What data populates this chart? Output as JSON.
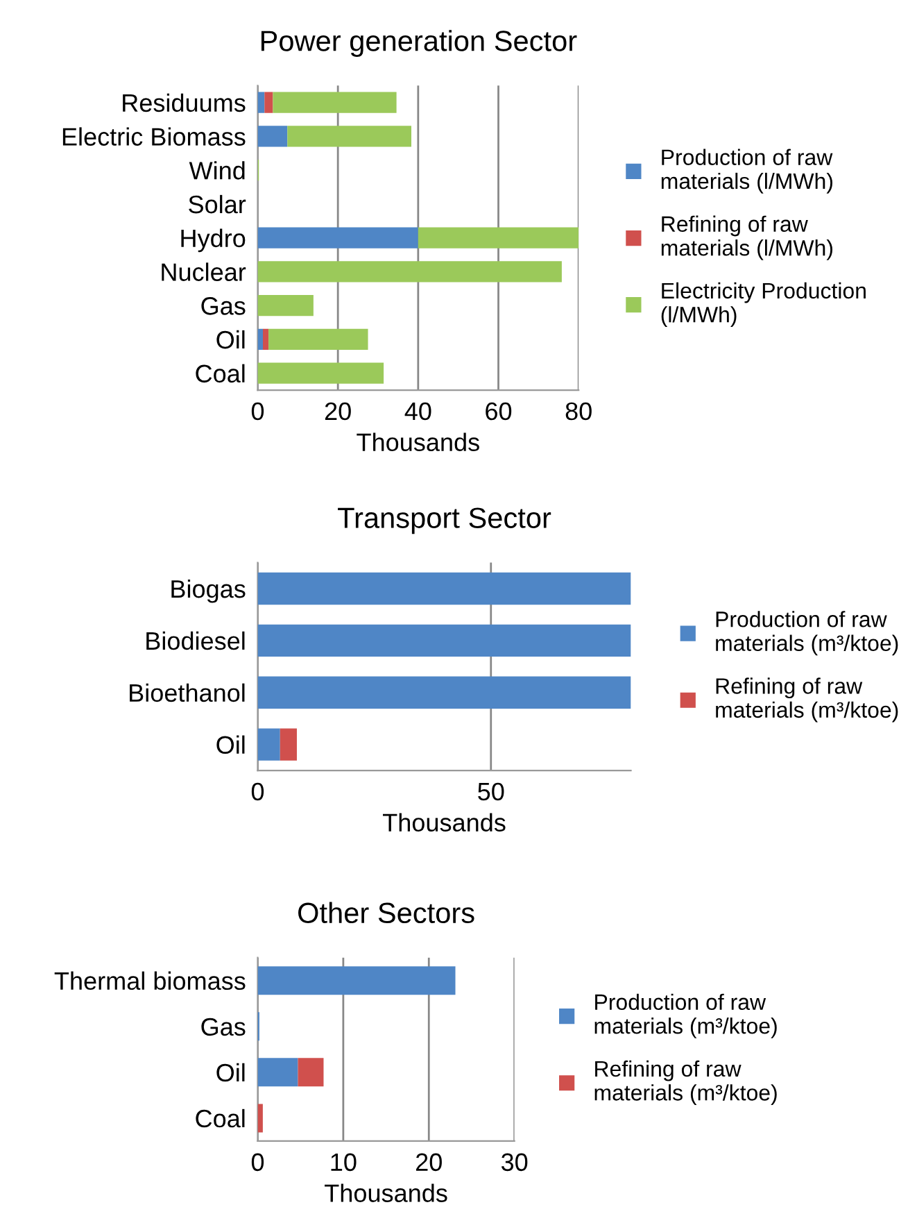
{
  "chart_data": [
    {
      "type": "bar",
      "orientation": "horizontal",
      "stacked": true,
      "title": "Power generation Sector",
      "xlabel": "Thousands",
      "categories": [
        "Residuums",
        "Electric Biomass",
        "Wind",
        "Solar",
        "Hydro",
        "Nuclear",
        "Gas",
        "Oil",
        "Coal"
      ],
      "series": [
        {
          "name": "Production of raw materials (l/MWh)",
          "color": "#4f86c6",
          "values": [
            1.7,
            7.4,
            0,
            0,
            40,
            0,
            0,
            1.3,
            0
          ]
        },
        {
          "name": "Refining of raw materials (l/MWh)",
          "color": "#d0504d",
          "values": [
            2.1,
            0,
            0,
            0,
            0,
            0,
            0,
            1.4,
            0
          ]
        },
        {
          "name": "Electricity Production (l/MWh)",
          "color": "#9bc95a",
          "values": [
            30.8,
            30.9,
            0.3,
            0,
            40,
            75.8,
            13.9,
            24.8,
            31.4
          ]
        }
      ],
      "xlim": [
        0,
        80
      ],
      "xticks": [
        0,
        20,
        40,
        60,
        80
      ],
      "grid": "x",
      "legend": "right"
    },
    {
      "type": "bar",
      "orientation": "horizontal",
      "stacked": true,
      "title": "Transport Sector",
      "xlabel": "Thousands",
      "categories": [
        "Biogas",
        "Biodiesel",
        "Bioethanol",
        "Oil"
      ],
      "series": [
        {
          "name": "Production of raw materials (m³/ktoe)",
          "color": "#4f86c6",
          "values": [
            80,
            80,
            80,
            4.8
          ]
        },
        {
          "name": "Refining of raw materials (m³/ktoe)",
          "color": "#d0504d",
          "values": [
            0,
            0,
            0,
            3.6
          ]
        }
      ],
      "xlim": [
        0,
        80
      ],
      "xticks": [
        0,
        50
      ],
      "grid": "x",
      "legend": "right"
    },
    {
      "type": "bar",
      "orientation": "horizontal",
      "stacked": true,
      "title": "Other Sectors",
      "xlabel": "Thousands",
      "categories": [
        "Thermal biomass",
        "Gas",
        "Oil",
        "Coal"
      ],
      "series": [
        {
          "name": "Production of raw materials (m³/ktoe)",
          "color": "#4f86c6",
          "values": [
            23.1,
            0.2,
            4.7,
            0
          ]
        },
        {
          "name": "Refining of raw materials (m³/ktoe)",
          "color": "#d0504d",
          "values": [
            0,
            0,
            3.0,
            0.6
          ]
        }
      ],
      "xlim": [
        0,
        30
      ],
      "xticks": [
        0,
        10,
        20,
        30
      ],
      "grid": "x",
      "legend": "right"
    }
  ]
}
